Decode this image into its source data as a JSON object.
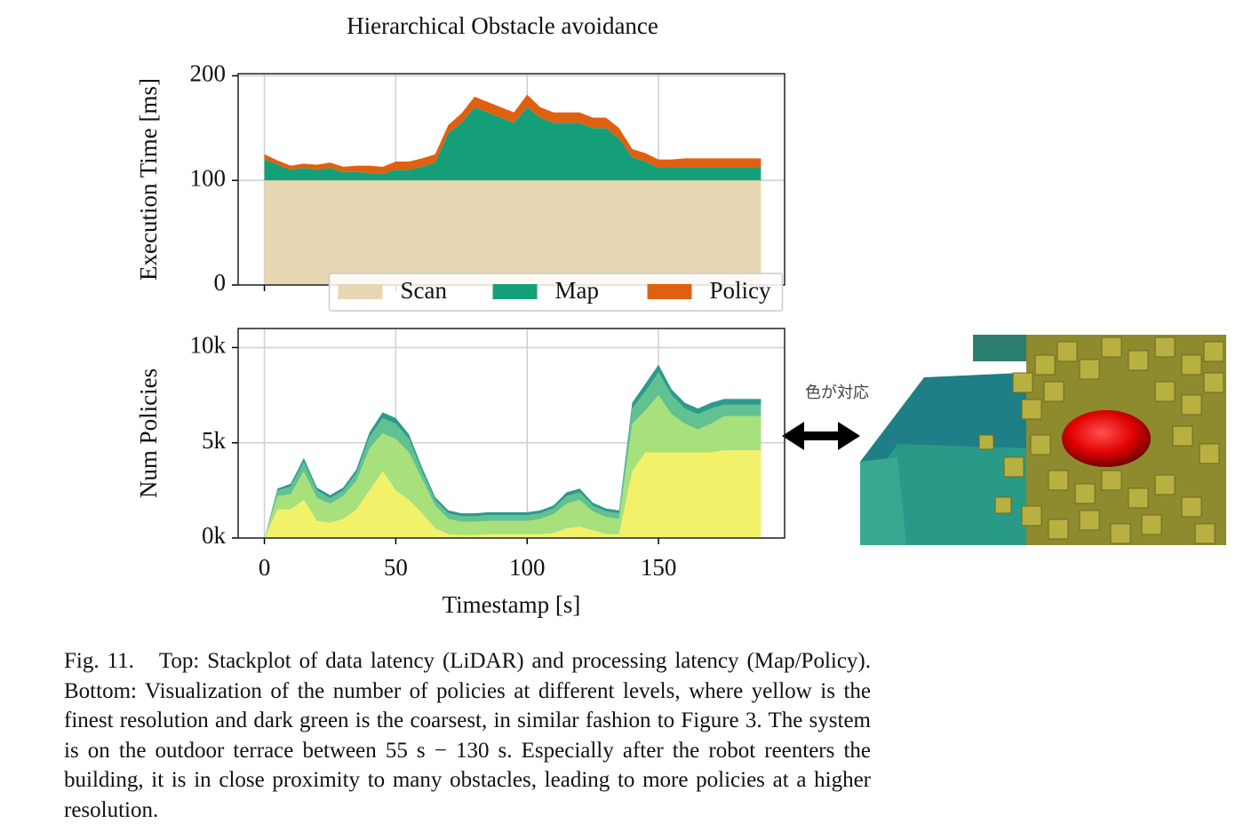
{
  "charts": [
    {
      "type": "stackplot",
      "title": "Hierarchical Obstacle avoidance",
      "ylabel": "Execution Time [ms]",
      "x": [
        0,
        5,
        10,
        15,
        20,
        25,
        30,
        35,
        40,
        45,
        50,
        55,
        60,
        65,
        70,
        75,
        80,
        85,
        90,
        95,
        100,
        105,
        110,
        115,
        120,
        125,
        130,
        135,
        140,
        145,
        150,
        155,
        160,
        165,
        170,
        175,
        180,
        185,
        189
      ],
      "series": [
        {
          "name": "Scan",
          "color": "#e6d6b2",
          "values": [
            100,
            100,
            100,
            100,
            100,
            100,
            100,
            100,
            100,
            100,
            100,
            100,
            100,
            100,
            100,
            100,
            100,
            100,
            100,
            100,
            100,
            100,
            100,
            100,
            100,
            100,
            100,
            100,
            100,
            100,
            100,
            100,
            100,
            100,
            100,
            100,
            100,
            100,
            100
          ]
        },
        {
          "name": "Map",
          "color": "#159f78",
          "values": [
            20,
            15,
            10,
            12,
            10,
            12,
            8,
            8,
            7,
            6,
            10,
            10,
            13,
            17,
            45,
            55,
            70,
            65,
            60,
            55,
            70,
            60,
            55,
            55,
            55,
            50,
            50,
            40,
            22,
            18,
            12,
            12,
            12,
            12,
            12,
            12,
            12,
            12,
            12
          ]
        },
        {
          "name": "Policy",
          "color": "#df6010",
          "values": [
            5,
            4,
            4,
            4,
            5,
            5,
            5,
            6,
            7,
            7,
            8,
            8,
            8,
            8,
            8,
            9,
            10,
            10,
            10,
            10,
            12,
            10,
            10,
            10,
            10,
            10,
            10,
            10,
            8,
            8,
            8,
            8,
            9,
            9,
            9,
            9,
            9,
            9,
            9
          ]
        }
      ],
      "xlim": [
        -10,
        198
      ],
      "xticks": [
        0,
        50,
        100,
        150
      ],
      "show_xtick_labels": false,
      "ylim": [
        0,
        202
      ],
      "yticks": [
        0,
        100,
        200
      ],
      "grid": true,
      "legend": "lower center"
    },
    {
      "type": "stackplot",
      "ylabel": "Num Policies",
      "xlabel": "Timestamp [s]",
      "x": [
        0,
        5,
        10,
        15,
        20,
        25,
        30,
        35,
        40,
        45,
        50,
        55,
        60,
        65,
        70,
        75,
        80,
        85,
        90,
        95,
        100,
        105,
        110,
        115,
        120,
        125,
        130,
        135,
        140,
        145,
        150,
        155,
        160,
        165,
        170,
        175,
        180,
        185,
        189
      ],
      "series": [
        {
          "color": "#f2f26a",
          "values": [
            0,
            1500,
            1500,
            2000,
            900,
            800,
            1000,
            1500,
            2500,
            3500,
            2500,
            2000,
            1300,
            500,
            200,
            150,
            150,
            200,
            200,
            200,
            200,
            200,
            250,
            500,
            600,
            400,
            200,
            200,
            3500,
            4500,
            4500,
            4500,
            4500,
            4500,
            4500,
            4600,
            4600,
            4600,
            4600
          ]
        },
        {
          "color": "#a8e07c",
          "values": [
            0,
            700,
            800,
            1500,
            1200,
            1000,
            1200,
            1500,
            2200,
            2000,
            2700,
            2500,
            1800,
            1200,
            800,
            700,
            700,
            700,
            700,
            700,
            700,
            800,
            1000,
            1300,
            1400,
            1000,
            900,
            800,
            2500,
            2200,
            3000,
            2000,
            1500,
            1200,
            1500,
            1800,
            1800,
            1800,
            1800
          ]
        },
        {
          "color": "#62c190",
          "values": [
            0,
            300,
            400,
            500,
            400,
            300,
            300,
            400,
            600,
            800,
            800,
            700,
            400,
            300,
            300,
            300,
            300,
            300,
            300,
            300,
            300,
            300,
            300,
            400,
            400,
            300,
            300,
            300,
            800,
            1000,
            1200,
            1000,
            800,
            800,
            800,
            600,
            600,
            600,
            600
          ]
        },
        {
          "color": "#2c9a8c",
          "values": [
            0,
            100,
            150,
            200,
            150,
            150,
            150,
            200,
            250,
            300,
            300,
            250,
            200,
            150,
            150,
            150,
            150,
            150,
            150,
            150,
            150,
            150,
            150,
            200,
            200,
            150,
            150,
            150,
            300,
            400,
            400,
            300,
            300,
            300,
            300,
            300,
            300,
            300,
            300
          ]
        }
      ],
      "xlim": [
        -10,
        198
      ],
      "xticks": [
        0,
        50,
        100,
        150
      ],
      "show_xtick_labels": true,
      "ylim": [
        0,
        11000
      ],
      "yticks": [
        {
          "value": 0,
          "label": "0k"
        },
        {
          "value": 5000,
          "label": "5k"
        },
        {
          "value": 10000,
          "label": "10k"
        }
      ],
      "grid": true
    }
  ],
  "annotation": "色が対応",
  "caption": {
    "label": "Fig. 11.",
    "text": "Top: Stackplot of data latency (LiDAR) and processing latency (Map/Policy). Bottom: Visualization of the number of policies at different levels, where yellow is the finest resolution and dark green is the coarsest, in similar fashion to Figure 3. The system is on the outdoor terrace between 55 s − 130 s. Especially after the robot reenters the building, it is in close proximity to many obstacles, leading to more policies at a higher resolution."
  }
}
